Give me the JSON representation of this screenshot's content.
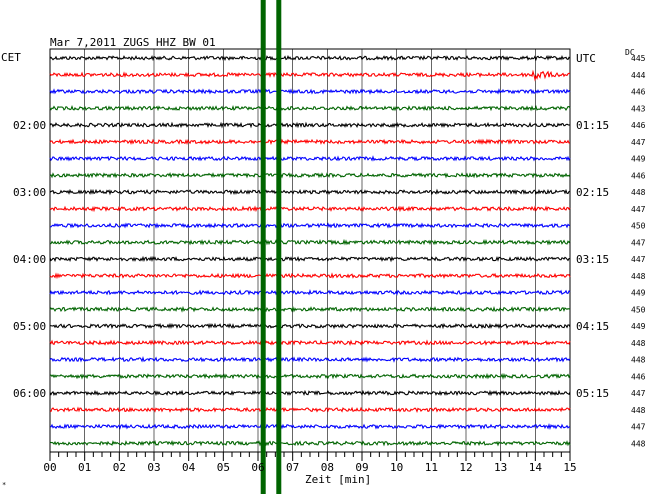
{
  "chart_data": {
    "type": "line",
    "title": "Mar 7,2011   ZUGS HHZ BW 01",
    "left_zone_label": "CET",
    "right_zone_label": "UTC",
    "dc_header": "DC",
    "xlabel": "Zeit [min]",
    "xlim": [
      0,
      15
    ],
    "x_ticks": [
      "00",
      "01",
      "02",
      "03",
      "04",
      "05",
      "06",
      "07",
      "08",
      "09",
      "10",
      "11",
      "12",
      "13",
      "14",
      "15"
    ],
    "trace_count": 24,
    "trace_colors": [
      "#000000",
      "#ff0000",
      "#0000ff",
      "#006400"
    ],
    "left_hour_labels": [
      {
        "trace": 4,
        "label": "02:00"
      },
      {
        "trace": 8,
        "label": "03:00"
      },
      {
        "trace": 12,
        "label": "04:00"
      },
      {
        "trace": 16,
        "label": "05:00"
      },
      {
        "trace": 20,
        "label": "06:00"
      }
    ],
    "right_hour_labels": [
      {
        "trace": 0,
        "label": "UTC"
      },
      {
        "trace": 4,
        "label": "01:15"
      },
      {
        "trace": 8,
        "label": "02:15"
      },
      {
        "trace": 12,
        "label": "03:15"
      },
      {
        "trace": 16,
        "label": "04:15"
      },
      {
        "trace": 20,
        "label": "05:15"
      }
    ],
    "dc_offsets": [
      445,
      444,
      446,
      443,
      446,
      447,
      449,
      446,
      448,
      447,
      450,
      447,
      447,
      448,
      449,
      450,
      449,
      448,
      448,
      446,
      447,
      448,
      447,
      448
    ],
    "event": {
      "trace": 1,
      "start_min": 13.9,
      "peak_min": 14.0,
      "end_min": 15.0
    },
    "marker_lines_min": [
      6.15,
      6.6
    ],
    "marker_color": "#006400"
  },
  "footer_mark": "*"
}
